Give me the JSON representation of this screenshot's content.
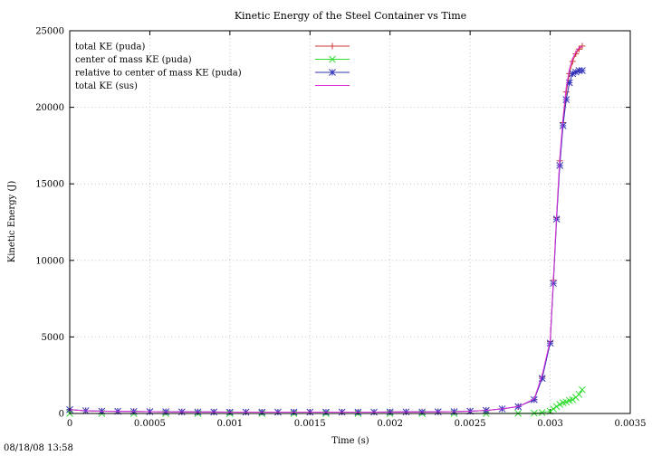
{
  "chart_data": {
    "type": "line",
    "title": "Kinetic Energy of the Steel Container vs Time",
    "xlabel": "Time (s)",
    "ylabel": "Kinetic Energy (J)",
    "xlim": [
      0,
      0.0035
    ],
    "ylim": [
      0,
      25000
    ],
    "x_ticks": [
      "0",
      "0.0005",
      "0.001",
      "0.0015",
      "0.002",
      "0.0025",
      "0.003",
      "0.0035"
    ],
    "y_ticks": [
      "0",
      "5000",
      "10000",
      "15000",
      "20000",
      "25000"
    ],
    "grid": true,
    "legend_position": "top-left",
    "series": [
      {
        "name": "total KE (puda)",
        "color": "#cc3333",
        "marker": "plus",
        "x": [
          0.0,
          0.0001,
          0.0002,
          0.0003,
          0.0004,
          0.0005,
          0.0006,
          0.0007,
          0.0008,
          0.0009,
          0.001,
          0.0011,
          0.0012,
          0.0013,
          0.0014,
          0.0015,
          0.0016,
          0.0017,
          0.0018,
          0.0019,
          0.002,
          0.0021,
          0.0022,
          0.0023,
          0.0024,
          0.0025,
          0.0026,
          0.0027,
          0.0028,
          0.0029,
          0.00295,
          0.003,
          0.00302,
          0.00304,
          0.00306,
          0.00308,
          0.0031,
          0.00312,
          0.00314,
          0.00316,
          0.00318,
          0.0032
        ],
        "y": [
          250,
          180,
          150,
          140,
          130,
          120,
          110,
          105,
          100,
          95,
          90,
          90,
          90,
          90,
          90,
          90,
          90,
          90,
          90,
          90,
          95,
          100,
          100,
          110,
          120,
          150,
          200,
          300,
          450,
          900,
          2400,
          4700,
          8700,
          12800,
          16500,
          19000,
          21000,
          22200,
          23000,
          23500,
          23800,
          24000
        ]
      },
      {
        "name": "center of mass KE (puda)",
        "color": "#33dd33",
        "marker": "cross",
        "x": [
          0.0,
          0.0002,
          0.0004,
          0.0006,
          0.0008,
          0.001,
          0.0012,
          0.0014,
          0.0016,
          0.0018,
          0.002,
          0.0022,
          0.0024,
          0.0026,
          0.0028,
          0.0029,
          0.00295,
          0.003,
          0.00302,
          0.00304,
          0.00306,
          0.00308,
          0.0031,
          0.00312,
          0.00314,
          0.00316,
          0.00318,
          0.0032
        ],
        "y": [
          0,
          0,
          0,
          0,
          0,
          0,
          0,
          0,
          0,
          0,
          0,
          0,
          0,
          0,
          5,
          20,
          60,
          150,
          300,
          450,
          600,
          700,
          750,
          850,
          900,
          1050,
          1250,
          1550
        ]
      },
      {
        "name": "relative to center of mass KE (puda)",
        "color": "#3333bb",
        "marker": "star",
        "x": [
          0.0,
          0.0001,
          0.0002,
          0.0003,
          0.0004,
          0.0005,
          0.0006,
          0.0007,
          0.0008,
          0.0009,
          0.001,
          0.0011,
          0.0012,
          0.0013,
          0.0014,
          0.0015,
          0.0016,
          0.0017,
          0.0018,
          0.0019,
          0.002,
          0.0021,
          0.0022,
          0.0023,
          0.0024,
          0.0025,
          0.0026,
          0.0027,
          0.0028,
          0.0029,
          0.00295,
          0.003,
          0.00302,
          0.00304,
          0.00306,
          0.00308,
          0.0031,
          0.00312,
          0.00314,
          0.00316,
          0.00318,
          0.0032
        ],
        "y": [
          250,
          180,
          150,
          140,
          130,
          120,
          110,
          105,
          100,
          95,
          90,
          90,
          90,
          90,
          90,
          90,
          90,
          90,
          90,
          90,
          95,
          100,
          100,
          110,
          120,
          150,
          200,
          300,
          450,
          900,
          2300,
          4600,
          8500,
          12700,
          16200,
          18800,
          20500,
          21600,
          22200,
          22300,
          22400,
          22400
        ]
      },
      {
        "name": "total KE (sus)",
        "color": "#dd33dd",
        "marker": "none",
        "x": [
          0.0,
          0.0001,
          0.0002,
          0.0003,
          0.0004,
          0.0005,
          0.0006,
          0.0007,
          0.0008,
          0.0009,
          0.001,
          0.0011,
          0.0012,
          0.0013,
          0.0014,
          0.0015,
          0.0016,
          0.0017,
          0.0018,
          0.0019,
          0.002,
          0.0021,
          0.0022,
          0.0023,
          0.0024,
          0.0025,
          0.0026,
          0.0027,
          0.0028,
          0.0029,
          0.00295,
          0.003,
          0.00302,
          0.00304,
          0.00306,
          0.00308,
          0.0031,
          0.00312,
          0.00314,
          0.00316,
          0.00318,
          0.0032
        ],
        "y": [
          250,
          180,
          150,
          140,
          130,
          120,
          110,
          105,
          100,
          95,
          90,
          90,
          90,
          90,
          90,
          90,
          90,
          90,
          90,
          90,
          95,
          100,
          100,
          110,
          120,
          150,
          200,
          300,
          450,
          950,
          2500,
          4800,
          8800,
          13000,
          16700,
          19300,
          21300,
          22500,
          23200,
          23600,
          23900,
          24000
        ]
      }
    ],
    "timestamp": "08/18/08 13:58"
  }
}
